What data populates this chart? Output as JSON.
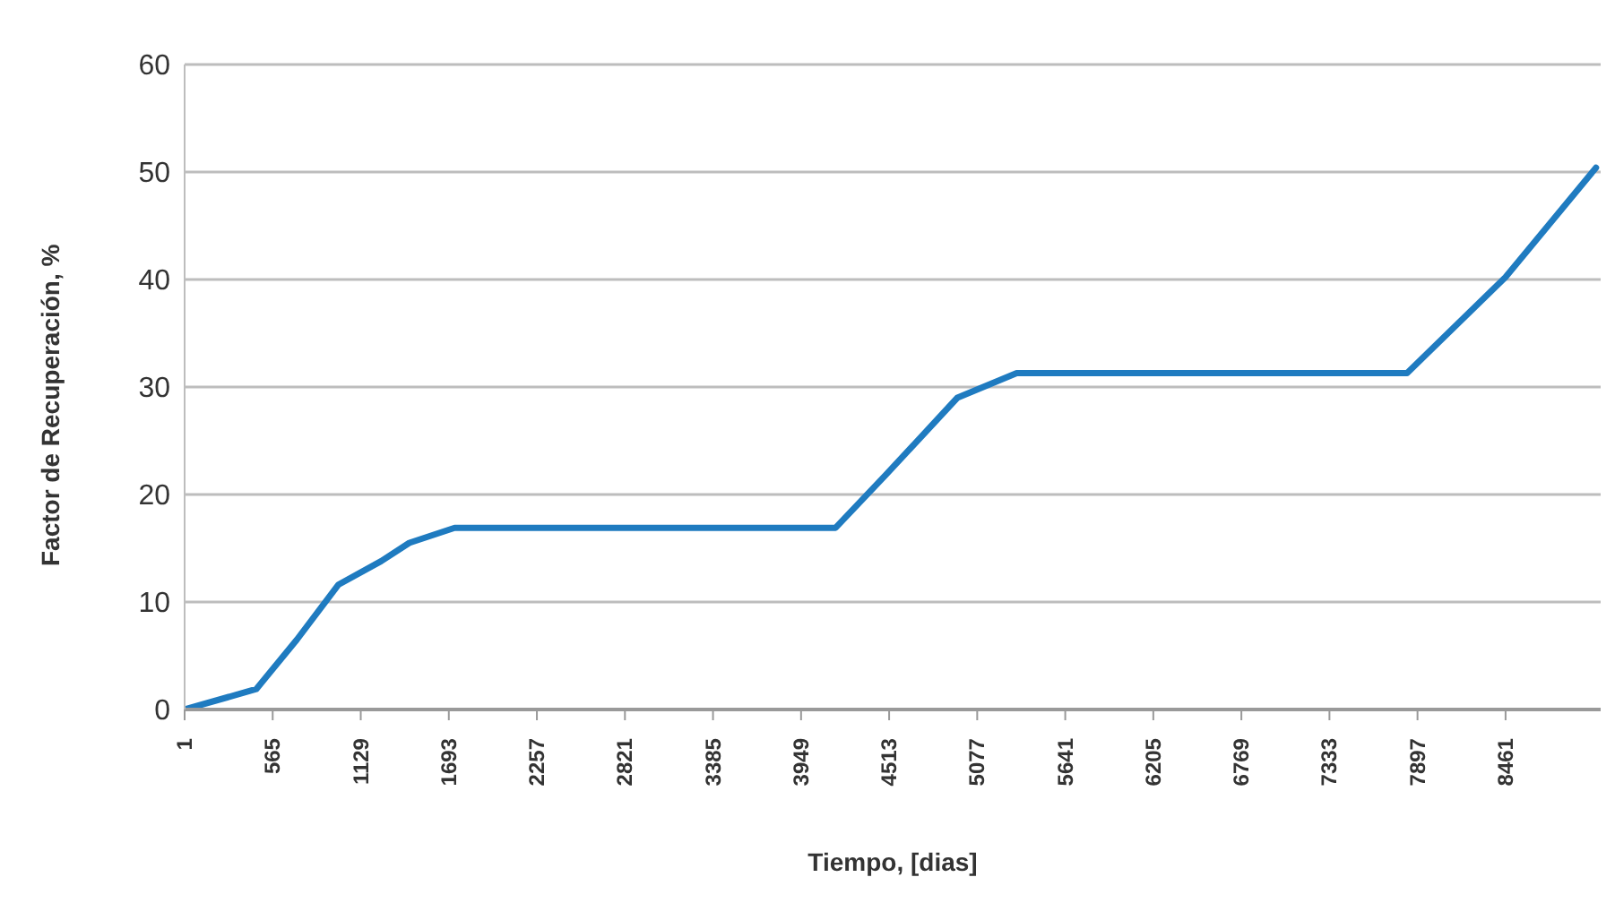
{
  "chart_data": {
    "type": "line",
    "xlabel": "Tiempo,  [dias]",
    "ylabel": "Factor de Recuperación, %",
    "xlim": [
      1,
      9070
    ],
    "xticks": [
      1,
      565,
      1129,
      1693,
      2257,
      2821,
      3385,
      3949,
      4513,
      5077,
      5641,
      6205,
      6769,
      7333,
      7897,
      8461
    ],
    "ylim": [
      0,
      60
    ],
    "yticks": [
      0,
      10,
      20,
      30,
      40,
      50,
      60
    ],
    "grid": "y",
    "legend": false,
    "marker": "none",
    "line_style": "solid",
    "series": [
      {
        "color": "#1f7bc0",
        "x": [
          1,
          460,
          720,
          985,
          1260,
          1440,
          1730,
          4170,
          4490,
          4950,
          5330,
          7830,
          8460,
          9040
        ],
        "values": [
          0,
          1.9,
          6.5,
          11.6,
          13.8,
          15.5,
          16.9,
          16.9,
          21.8,
          29,
          31.3,
          31.3,
          40.2,
          50.4
        ]
      }
    ]
  }
}
